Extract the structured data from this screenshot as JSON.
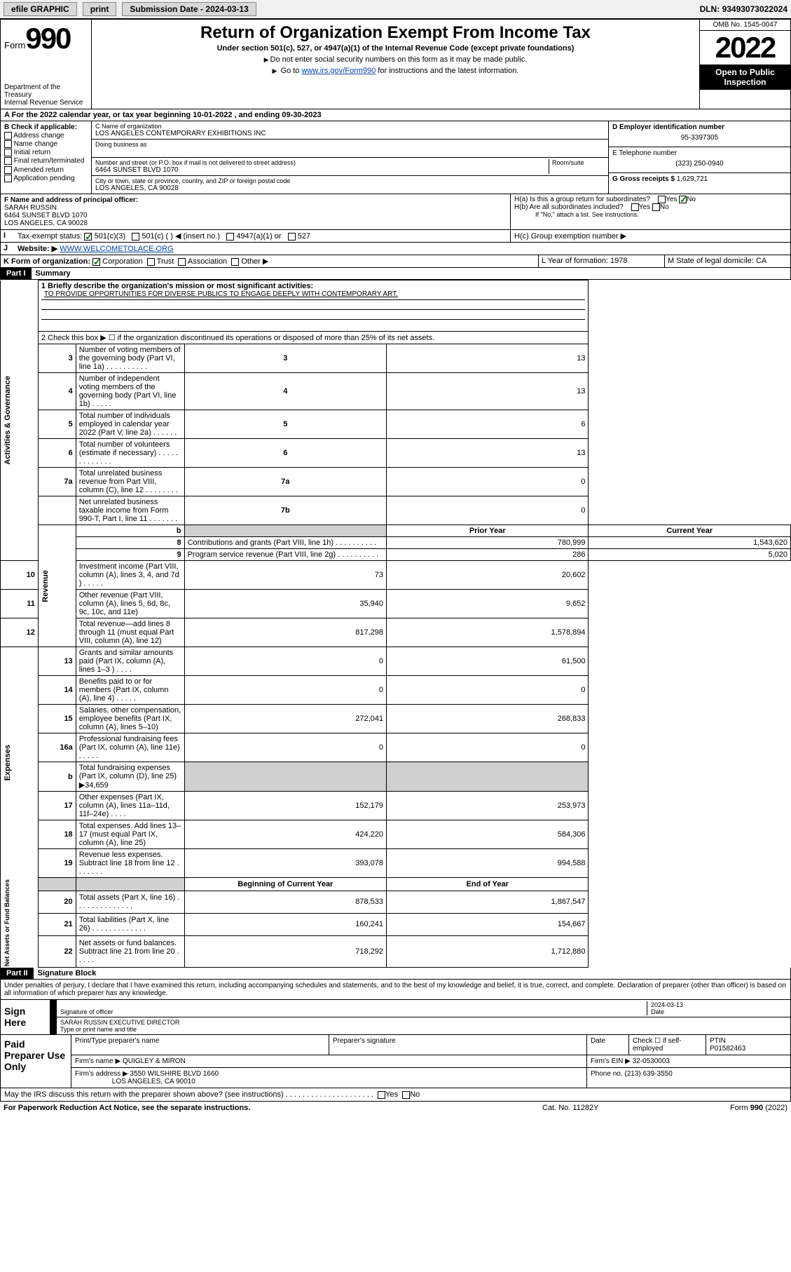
{
  "topbar": {
    "efile": "efile GRAPHIC",
    "print": "print",
    "subdate_label": "Submission Date - ",
    "subdate": "2024-03-13",
    "dln_label": "DLN: ",
    "dln": "93493073022024"
  },
  "header": {
    "form_label": "Form",
    "form_num": "990",
    "title": "Return of Organization Exempt From Income Tax",
    "subtitle": "Under section 501(c), 527, or 4947(a)(1) of the Internal Revenue Code (except private foundations)",
    "note1": "Do not enter social security numbers on this form as it may be made public.",
    "note2_pre": "Go to ",
    "note2_link": "www.irs.gov/Form990",
    "note2_post": " for instructions and the latest information.",
    "dept": "Department of the Treasury",
    "irs": "Internal Revenue Service",
    "omb": "OMB No. 1545-0047",
    "year": "2022",
    "open": "Open to Public Inspection"
  },
  "period": {
    "text_pre": "For the 2022 calendar year, or tax year beginning ",
    "begin": "10-01-2022",
    "mid": " , and ending ",
    "end": "09-30-2023"
  },
  "blockB": {
    "title": "B Check if applicable:",
    "items": [
      "Address change",
      "Name change",
      "Initial return",
      "Final return/terminated",
      "Amended return",
      "Application pending"
    ]
  },
  "blockC": {
    "name_label": "C Name of organization",
    "name": "LOS ANGELES CONTEMPORARY EXHIBITIONS INC",
    "dba_label": "Doing business as",
    "addr_label": "Number and street (or P.O. box if mail is not delivered to street address)",
    "room_label": "Room/suite",
    "addr": "6464 SUNSET BLVD 1070",
    "city_label": "City or town, state or province, country, and ZIP or foreign postal code",
    "city": "LOS ANGELES, CA  90028"
  },
  "blockD": {
    "label": "D Employer identification number",
    "val": "95-3397305"
  },
  "blockE": {
    "label": "E Telephone number",
    "val": "(323) 250-0940"
  },
  "blockG": {
    "label": "G Gross receipts $ ",
    "val": "1,629,721"
  },
  "officer": {
    "label": "F  Name and address of principal officer:",
    "name": "SARAH RUSSIN",
    "addr1": "6464 SUNSET BLVD 1070",
    "addr2": "LOS ANGELES, CA  90028"
  },
  "blockH": {
    "a": "H(a)  Is this a group return for subordinates?",
    "b": "H(b)  Are all subordinates included?",
    "b_note": "If \"No,\" attach a list. See instructions.",
    "c": "H(c)  Group exemption number ▶",
    "yes": "Yes",
    "no": "No"
  },
  "taxstatus": {
    "label": "Tax-exempt status:",
    "opts": [
      "501(c)(3)",
      "501(c) (  ) ◀ (insert no.)",
      "4947(a)(1) or",
      "527"
    ]
  },
  "website": {
    "label": "Website: ▶",
    "val": "WWW.WELCOMETOLACE.ORG"
  },
  "formorg": {
    "k": "K Form of organization:",
    "opts": [
      "Corporation",
      "Trust",
      "Association",
      "Other ▶"
    ],
    "l_label": "L Year of formation: ",
    "l_val": "1978",
    "m_label": "M State of legal domicile: ",
    "m_val": "CA"
  },
  "part1": {
    "bar": "Part I",
    "title": "Summary"
  },
  "summary": {
    "mission_label": "1  Briefly describe the organization's mission or most significant activities:",
    "mission": "TO PROVIDE OPPORTUNITIES FOR DIVERSE PUBLICS TO ENGAGE DEEPLY WITH CONTEMPORARY ART.",
    "line2": "2  Check this box ▶ ☐  if the organization discontinued its operations or disposed of more than 25% of its net assets.",
    "sections": [
      {
        "label": "Activities & Governance",
        "rows": [
          {
            "n": "3",
            "d": "Number of voting members of the governing body (Part VI, line 1a)  .  .  .  .  .  .  .  .  .  .",
            "b": "3",
            "v": "13"
          },
          {
            "n": "4",
            "d": "Number of independent voting members of the governing body (Part VI, line 1b)  .  .  .  .  .",
            "b": "4",
            "v": "13"
          },
          {
            "n": "5",
            "d": "Total number of individuals employed in calendar year 2022 (Part V, line 2a)  .  .  .  .  .  .",
            "b": "5",
            "v": "6"
          },
          {
            "n": "6",
            "d": "Total number of volunteers (estimate if necessary)  .  .  .  .  .  .  .  .  .  .  .  .  .",
            "b": "6",
            "v": "13"
          },
          {
            "n": "7a",
            "d": "Total unrelated business revenue from Part VIII, column (C), line 12  .  .  .  .  .  .  .  .",
            "b": "7a",
            "v": "0"
          },
          {
            "n": "",
            "d": "Net unrelated business taxable income from Form 990-T, Part I, line 11  .  .  .  .  .  .  .",
            "b": "7b",
            "v": "0"
          }
        ]
      },
      {
        "label": "Revenue",
        "header": [
          "Prior Year",
          "Current Year"
        ],
        "rows": [
          {
            "n": "8",
            "d": "Contributions and grants (Part VIII, line 1h)  .  .  .  .  .  .  .  .  .  .",
            "p": "780,999",
            "c": "1,543,620"
          },
          {
            "n": "9",
            "d": "Program service revenue (Part VIII, line 2g)  .  .  .  .  .  .  .  .  .  .",
            "p": "286",
            "c": "5,020"
          },
          {
            "n": "10",
            "d": "Investment income (Part VIII, column (A), lines 3, 4, and 7d )  .  .  .  .  .",
            "p": "73",
            "c": "20,602"
          },
          {
            "n": "11",
            "d": "Other revenue (Part VIII, column (A), lines 5, 6d, 8c, 9c, 10c, and 11e)",
            "p": "35,940",
            "c": "9,652"
          },
          {
            "n": "12",
            "d": "Total revenue—add lines 8 through 11 (must equal Part VIII, column (A), line 12)",
            "p": "817,298",
            "c": "1,578,894"
          }
        ]
      },
      {
        "label": "Expenses",
        "rows": [
          {
            "n": "13",
            "d": "Grants and similar amounts paid (Part IX, column (A), lines 1–3 )  .  .  .  .",
            "p": "0",
            "c": "61,500"
          },
          {
            "n": "14",
            "d": "Benefits paid to or for members (Part IX, column (A), line 4)  .  .  .  .  .",
            "p": "0",
            "c": "0"
          },
          {
            "n": "15",
            "d": "Salaries, other compensation, employee benefits (Part IX, column (A), lines 5–10)",
            "p": "272,041",
            "c": "268,833"
          },
          {
            "n": "16a",
            "d": "Professional fundraising fees (Part IX, column (A), line 11e)  .  .  .  .  .",
            "p": "0",
            "c": "0"
          },
          {
            "n": "b",
            "d": "Total fundraising expenses (Part IX, column (D), line 25) ▶34,659",
            "p": "GRAY",
            "c": "GRAY"
          },
          {
            "n": "17",
            "d": "Other expenses (Part IX, column (A), lines 11a–11d, 11f–24e)  .  .  .  .",
            "p": "152,179",
            "c": "253,973"
          },
          {
            "n": "18",
            "d": "Total expenses. Add lines 13–17 (must equal Part IX, column (A), line 25)",
            "p": "424,220",
            "c": "584,306"
          },
          {
            "n": "19",
            "d": "Revenue less expenses. Subtract line 18 from line 12  .  .  .  .  .  .  .",
            "p": "393,078",
            "c": "994,588"
          }
        ]
      },
      {
        "label": "Net Assets or Fund Balances",
        "header": [
          "Beginning of Current Year",
          "End of Year"
        ],
        "rows": [
          {
            "n": "20",
            "d": "Total assets (Part X, line 16)  .  .  .  .  .  .  .  .  .  .  .  .  .  .",
            "p": "878,533",
            "c": "1,867,547"
          },
          {
            "n": "21",
            "d": "Total liabilities (Part X, line 26)  .  .  .  .  .  .  .  .  .  .  .  .  .",
            "p": "160,241",
            "c": "154,667"
          },
          {
            "n": "22",
            "d": "Net assets or fund balances. Subtract line 21 from line 20  .  .  .  .  .",
            "p": "718,292",
            "c": "1,712,880"
          }
        ]
      }
    ]
  },
  "part2": {
    "bar": "Part II",
    "title": "Signature Block"
  },
  "sig": {
    "decl": "Under penalties of perjury, I declare that I have examined this return, including accompanying schedules and statements, and to the best of my knowledge and belief, it is true, correct, and complete. Declaration of preparer (other than officer) is based on all information of which preparer has any knowledge.",
    "sign_here": "Sign Here",
    "sig_officer": "Signature of officer",
    "date_label": "Date",
    "date": "2024-03-13",
    "name": "SARAH RUSSIN  EXECUTIVE DIRECTOR",
    "name_label": "Type or print name and title",
    "paid": "Paid Preparer Use Only",
    "prep_name_label": "Print/Type preparer's name",
    "prep_sig_label": "Preparer's signature",
    "check_label": "Check ☐ if self-employed",
    "ptin_label": "PTIN",
    "ptin": "P01582463",
    "firm_name_label": "Firm's name   ▶",
    "firm_name": "QUIGLEY & MIRON",
    "firm_ein_label": "Firm's EIN ▶",
    "firm_ein": "32-0530003",
    "firm_addr_label": "Firm's address ▶",
    "firm_addr": "3550 WILSHIRE BLVD 1660",
    "firm_city": "LOS ANGELES, CA  90010",
    "phone_label": "Phone no.",
    "phone": "(213) 639-3550",
    "discuss": "May the IRS discuss this return with the preparer shown above? (see instructions)  .  .  .  .  .  .  .  .  .  .  .  .  .  .  .  .  .  .  .  .  ."
  },
  "footer": {
    "l": "For Paperwork Reduction Act Notice, see the separate instructions.",
    "c": "Cat. No. 11282Y",
    "r": "Form 990 (2022)"
  },
  "colors": {
    "link": "#0645ad",
    "check": "#0a6b0a",
    "gray": "#d0d0d0"
  }
}
